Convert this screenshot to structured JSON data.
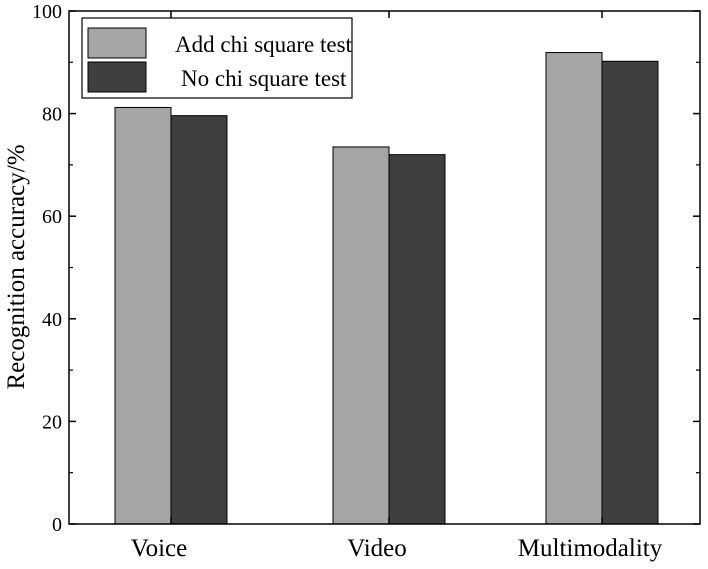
{
  "chart_data": {
    "type": "bar",
    "title": "",
    "xlabel": "",
    "ylabel": "Recognition accuracy/%",
    "ylim": [
      0,
      100
    ],
    "yticks": [
      0,
      20,
      40,
      60,
      80,
      100
    ],
    "categories": [
      "Voice",
      "Video",
      "Multimodality"
    ],
    "series": [
      {
        "name": "Add chi square test",
        "values": [
          81.2,
          73.5,
          91.9
        ],
        "color": "#a5a5a5"
      },
      {
        "name": "No chi square test",
        "values": [
          79.6,
          72.0,
          90.2
        ],
        "color": "#3f3f3f"
      }
    ],
    "grid": false,
    "legend_position": "top-left"
  }
}
